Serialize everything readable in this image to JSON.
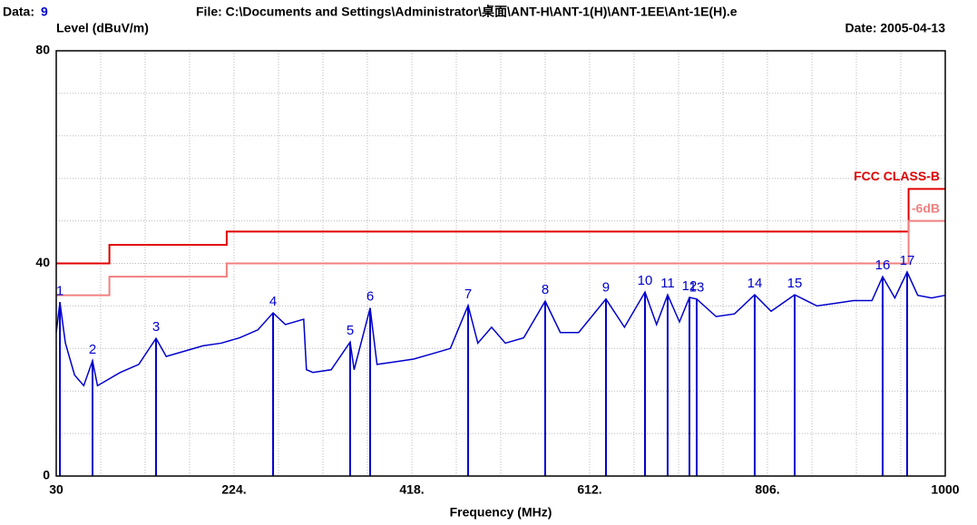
{
  "chart_data": {
    "type": "line",
    "header": {
      "data_label": "Data:",
      "data_value": "9",
      "file": "File: C:\\Documents and Settings\\Administrator\\桌面\\ANT-H\\ANT-1(H)\\ANT-1EE\\Ant-1E(H).e",
      "date": "Date: 2005-04-13"
    },
    "ylabel": "Level (dBuV/m)",
    "xlabel": "Frequency (MHz)",
    "xlim": [
      30,
      1000
    ],
    "ylim": [
      0,
      80
    ],
    "xticks": [
      30,
      {
        "value": 224,
        "label": "224."
      },
      {
        "value": 418,
        "label": "418."
      },
      {
        "value": 612,
        "label": "612."
      },
      {
        "value": 806,
        "label": "806."
      },
      1000
    ],
    "yticks": [
      0,
      40,
      80
    ],
    "xminor": [
      78.5,
      127,
      175.5,
      272.5,
      321,
      369.5,
      466.5,
      515,
      563.5,
      660.5,
      709,
      757.5,
      854.5,
      903,
      951.5
    ],
    "yminor": [
      8,
      16,
      24,
      32,
      48,
      56,
      64,
      72
    ],
    "grid": true,
    "series": [
      {
        "color": "#0000cc",
        "x": [
          30,
          34,
          40,
          50,
          60,
          69.6,
          75,
          85,
          100,
          120,
          138.9,
          150,
          170,
          190,
          210,
          230,
          250,
          266.6,
          280,
          300,
          303,
          310,
          330,
          350.7,
          355,
          372.5,
          380,
          400,
          420,
          440,
          460,
          479.4,
          490,
          505,
          520,
          540,
          563.5,
          580,
          600,
          629.8,
          650,
          672.4,
          685,
          697.1,
          710,
          720.9,
          728.8,
          750,
          770,
          792.1,
          810,
          835.7,
          860,
          880,
          900,
          920,
          931.7,
          945,
          958.4,
          970,
          985,
          1000
        ],
        "values": [
          27,
          32.7,
          25,
          19,
          17,
          21.7,
          17,
          18,
          19.5,
          21,
          25.9,
          22.5,
          23.5,
          24.5,
          25,
          26,
          27.5,
          30.7,
          28.5,
          29.5,
          20,
          19.5,
          20,
          25.2,
          20,
          31.6,
          21,
          21.5,
          22,
          23,
          24,
          32.1,
          25,
          28,
          25,
          26,
          32.9,
          27,
          27,
          33.3,
          28,
          34.6,
          28.5,
          34.1,
          29,
          33.6,
          33.3,
          30,
          30.5,
          34.1,
          31,
          34.1,
          32,
          32.5,
          33,
          33,
          37.5,
          33.5,
          38.4,
          34,
          33.5,
          34
        ]
      },
      {
        "name": "FCC CLASS-B",
        "color": "#e00000",
        "x": [
          30,
          88,
          88,
          216,
          216,
          960,
          960,
          1000
        ],
        "values": [
          40,
          40,
          43.5,
          43.5,
          46,
          46,
          54,
          54
        ]
      },
      {
        "name": "-6dB",
        "color": "#f08080",
        "x": [
          30,
          88,
          88,
          216,
          216,
          960,
          960,
          1000
        ],
        "values": [
          34,
          34,
          37.5,
          37.5,
          40,
          40,
          48,
          48
        ]
      }
    ],
    "markers": [
      {
        "label": "1",
        "x": 34,
        "value": 32.7
      },
      {
        "label": "2",
        "x": 69.6,
        "value": 21.7
      },
      {
        "label": "3",
        "x": 138.9,
        "value": 25.9
      },
      {
        "label": "4",
        "x": 266.6,
        "value": 30.7
      },
      {
        "label": "5",
        "x": 350.7,
        "value": 25.2
      },
      {
        "label": "6",
        "x": 372.5,
        "value": 31.6
      },
      {
        "label": "7",
        "x": 479.4,
        "value": 32.1
      },
      {
        "label": "8",
        "x": 563.5,
        "value": 32.9
      },
      {
        "label": "9",
        "x": 629.8,
        "value": 33.3
      },
      {
        "label": "10",
        "x": 672.4,
        "value": 34.6
      },
      {
        "label": "11",
        "x": 697.1,
        "value": 34.1
      },
      {
        "label": "12",
        "x": 720.9,
        "value": 33.6
      },
      {
        "label": "13",
        "x": 728.8,
        "value": 33.3
      },
      {
        "label": "14",
        "x": 792.1,
        "value": 34.1
      },
      {
        "label": "15",
        "x": 835.7,
        "value": 34.1
      },
      {
        "label": "16",
        "x": 931.7,
        "value": 37.5
      },
      {
        "label": "17",
        "x": 958.4,
        "value": 38.4
      }
    ],
    "marker_color": "#0000cc"
  }
}
